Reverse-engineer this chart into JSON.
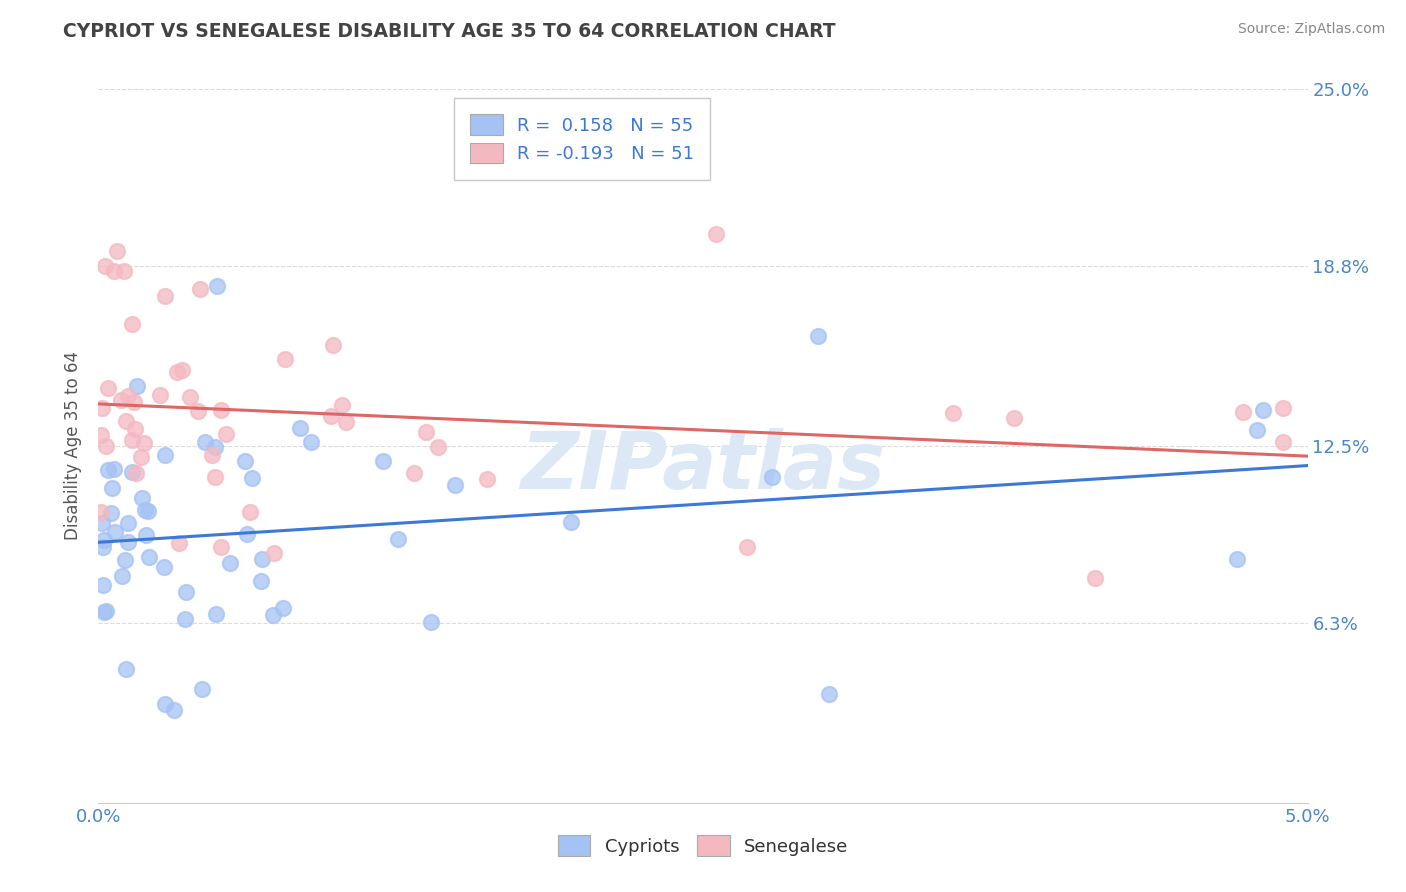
{
  "title": "CYPRIOT VS SENEGALESE DISABILITY AGE 35 TO 64 CORRELATION CHART",
  "source": "Source: ZipAtlas.com",
  "ylabel": "Disability Age 35 to 64",
  "xlim": [
    0.0,
    5.0
  ],
  "ylim": [
    0.0,
    25.0
  ],
  "ytick_vals": [
    0.0,
    6.3,
    12.5,
    18.8,
    25.0
  ],
  "ytick_labels": [
    "",
    "6.3%",
    "12.5%",
    "18.8%",
    "25.0%"
  ],
  "cypriot_R": 0.158,
  "cypriot_N": 55,
  "senegalese_R": -0.193,
  "senegalese_N": 51,
  "blue_scatter": "#a4c2f4",
  "pink_scatter": "#f4b8c1",
  "blue_line": "#3c78d8",
  "pink_line": "#e06666",
  "watermark_color": "#e0e8f0",
  "grid_color": "#cccccc",
  "title_color": "#434343",
  "tick_color": "#4a86c8",
  "source_color": "#888888",
  "ylabel_color": "#555555",
  "background": "#ffffff",
  "legend_text_color": "#000000",
  "legend_RN_color": "#3c78d8"
}
